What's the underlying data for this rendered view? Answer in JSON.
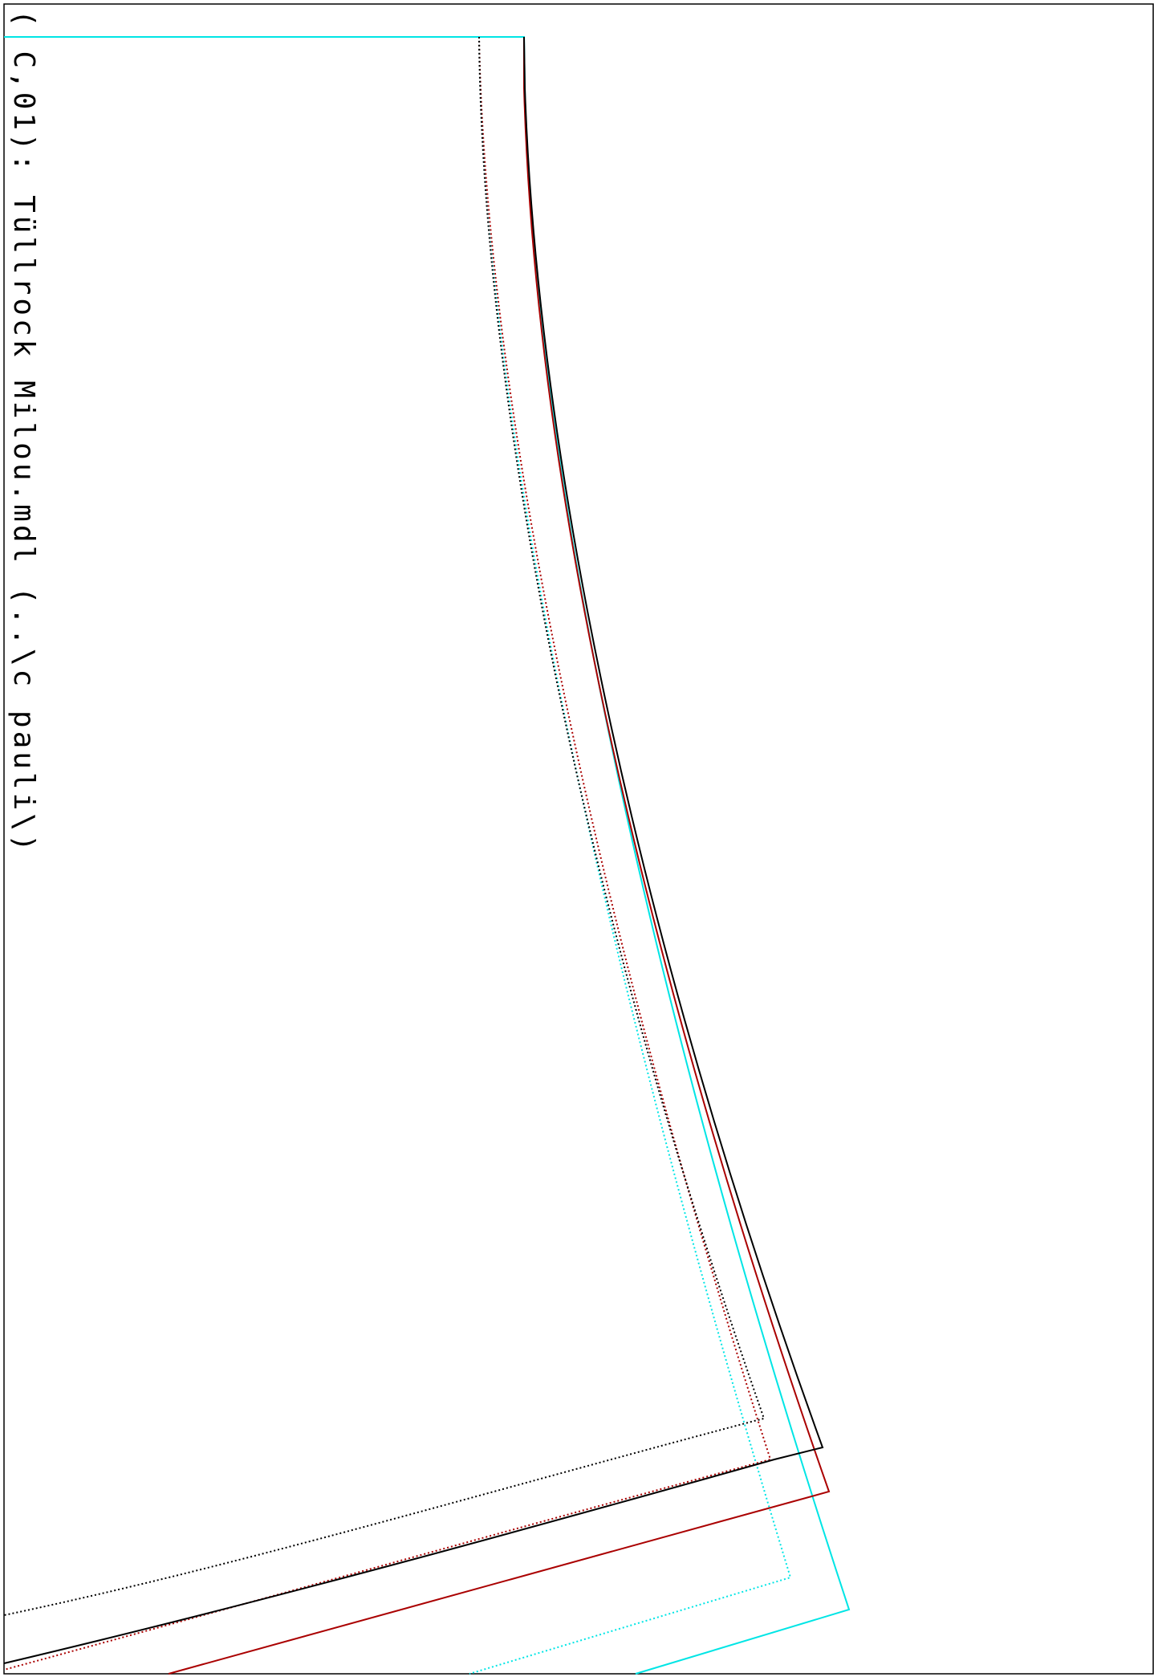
{
  "file_label": "( C,01): Tüllrock Milou.mdl (..\\c pauli\\)",
  "colors": {
    "frame": "#000000",
    "black_outline": "#000000",
    "red_outline": "#aa0000",
    "cyan_outline": "#00e5e5"
  }
}
